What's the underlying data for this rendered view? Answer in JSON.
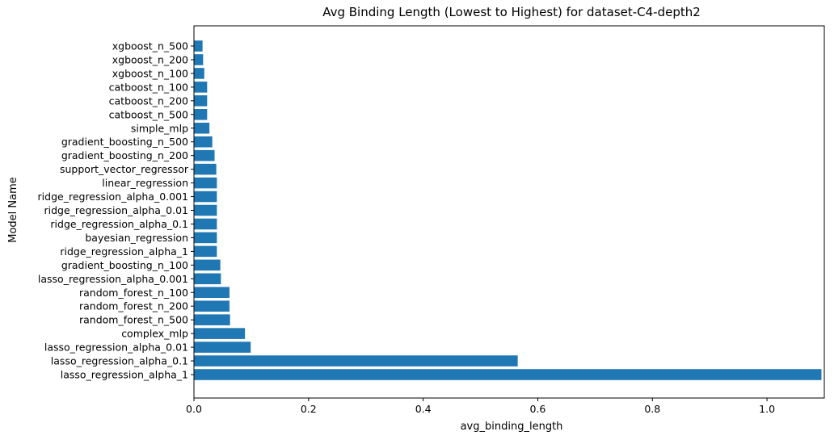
{
  "chart_data": {
    "type": "bar",
    "orientation": "horizontal",
    "title": "Avg Binding Length (Lowest to Highest) for dataset-C4-depth2",
    "xlabel": "avg_binding_length",
    "ylabel": "Model Name",
    "xlim": [
      0,
      1.1
    ],
    "xticks": [
      "0.0",
      "0.2",
      "0.4",
      "0.6",
      "0.8",
      "1.0"
    ],
    "bar_color": "#1f77b4",
    "grid": false,
    "categories": [
      "xgboost_n_500",
      "xgboost_n_200",
      "xgboost_n_100",
      "catboost_n_100",
      "catboost_n_200",
      "catboost_n_500",
      "simple_mlp",
      "gradient_boosting_n_500",
      "gradient_boosting_n_200",
      "support_vector_regressor",
      "linear_regression",
      "ridge_regression_alpha_0.001",
      "ridge_regression_alpha_0.01",
      "ridge_regression_alpha_0.1",
      "bayesian_regression",
      "ridge_regression_alpha_1",
      "gradient_boosting_n_100",
      "lasso_regression_alpha_0.001",
      "random_forest_n_100",
      "random_forest_n_200",
      "random_forest_n_500",
      "complex_mlp",
      "lasso_regression_alpha_0.01",
      "lasso_regression_alpha_0.1",
      "lasso_regression_alpha_1"
    ],
    "values": [
      0.015,
      0.016,
      0.018,
      0.023,
      0.023,
      0.023,
      0.027,
      0.032,
      0.036,
      0.039,
      0.04,
      0.04,
      0.04,
      0.04,
      0.04,
      0.04,
      0.046,
      0.047,
      0.062,
      0.062,
      0.063,
      0.089,
      0.099,
      0.565,
      1.095
    ]
  }
}
